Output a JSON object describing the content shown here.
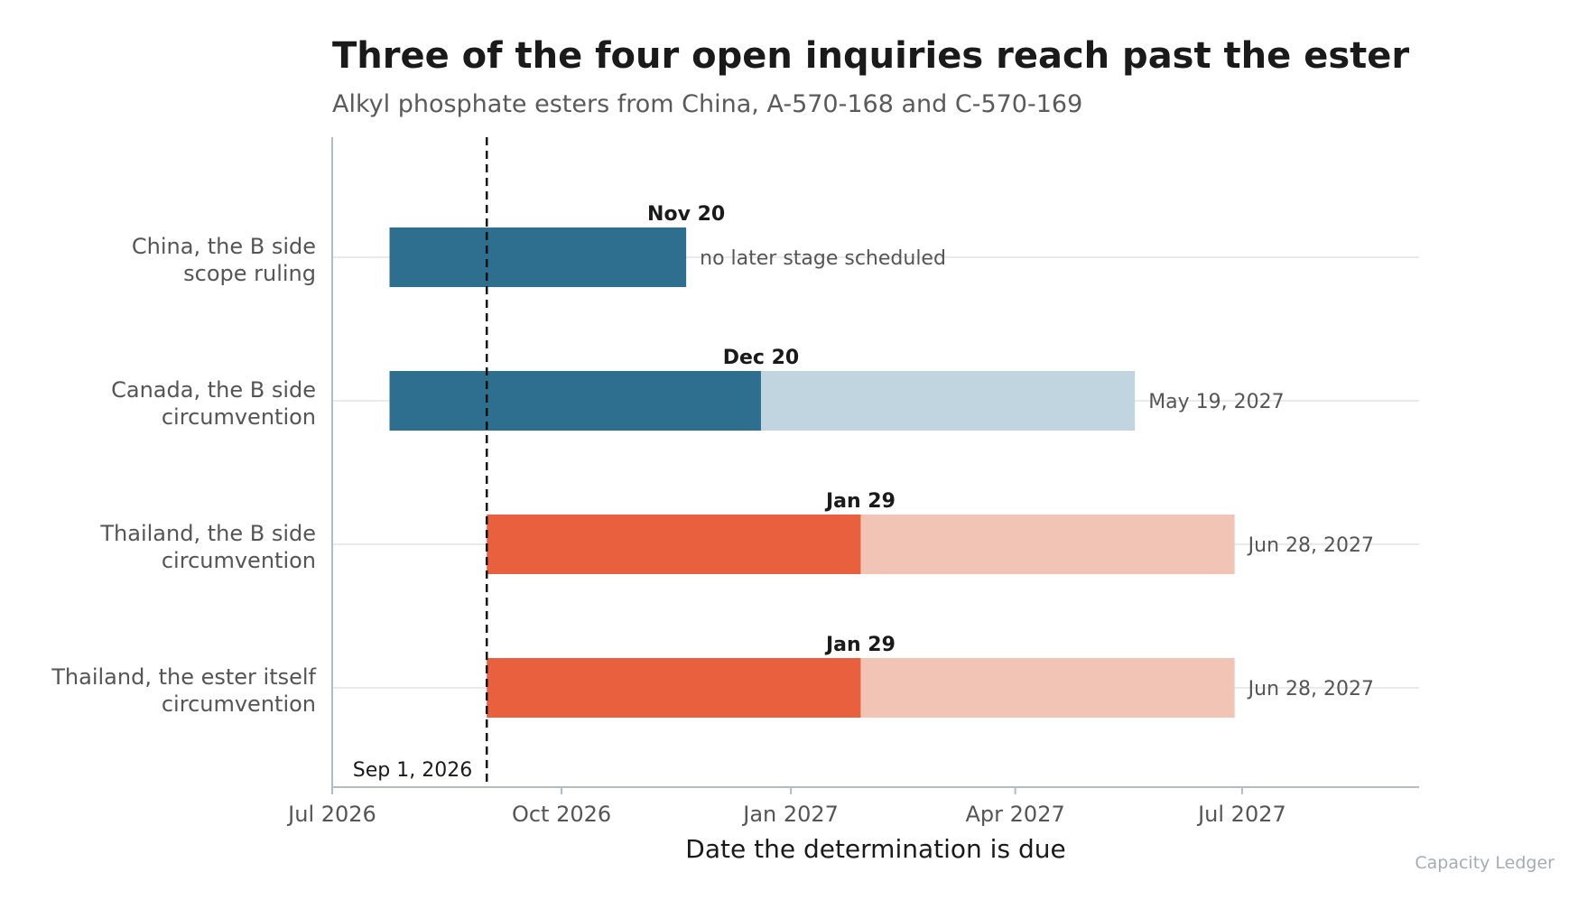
{
  "chart_data": {
    "type": "bar",
    "orientation": "horizontal",
    "title": "Three of the four open inquiries reach past the ester",
    "subtitle": "Alkyl phosphate esters from China, A-570-168 and C-570-169",
    "xlabel": "Date the determination is due",
    "ylabel": "",
    "x_range": [
      "2026-07-01",
      "2027-09-10"
    ],
    "x_ticks": [
      {
        "date": "2026-07-01",
        "label": "Jul 2026"
      },
      {
        "date": "2026-10-01",
        "label": "Oct 2026"
      },
      {
        "date": "2027-01-01",
        "label": "Jan 2027"
      },
      {
        "date": "2027-04-01",
        "label": "Apr 2027"
      },
      {
        "date": "2027-07-01",
        "label": "Jul 2027"
      }
    ],
    "reference_line": {
      "date": "2026-09-01",
      "label": "Sep 1, 2026"
    },
    "grid": "horizontal",
    "legend": "none",
    "colors": {
      "china_canada_stage": "#2e6e8e",
      "china_canada_later": "#c0d5e0",
      "thailand_stage": "#e8603e",
      "thailand_later": "#f2c4b6",
      "axis": "#b0bcc6",
      "grid": "#e3e3e3",
      "reference": "#111111"
    },
    "rows": [
      {
        "label_line1": "China, the B side",
        "label_line2": "scope ruling",
        "start": "2026-07-24",
        "stage_end": "2026-11-20",
        "stage_label": "Nov 20",
        "later_end": null,
        "end_label": "no later stage scheduled",
        "color_key": "china_canada"
      },
      {
        "label_line1": "Canada, the B side",
        "label_line2": "circumvention",
        "start": "2026-07-24",
        "stage_end": "2026-12-20",
        "stage_label": "Dec 20",
        "later_end": "2027-05-19",
        "end_label": "May 19, 2027",
        "color_key": "china_canada"
      },
      {
        "label_line1": "Thailand, the B side",
        "label_line2": "circumvention",
        "start": "2026-09-01",
        "stage_end": "2027-01-29",
        "stage_label": "Jan 29",
        "later_end": "2027-06-28",
        "end_label": "Jun 28, 2027",
        "color_key": "thailand"
      },
      {
        "label_line1": "Thailand, the ester itself",
        "label_line2": "circumvention",
        "start": "2026-09-01",
        "stage_end": "2027-01-29",
        "stage_label": "Jan 29",
        "later_end": "2027-06-28",
        "end_label": "Jun 28, 2027",
        "color_key": "thailand"
      }
    ]
  },
  "credit": "Capacity Ledger"
}
